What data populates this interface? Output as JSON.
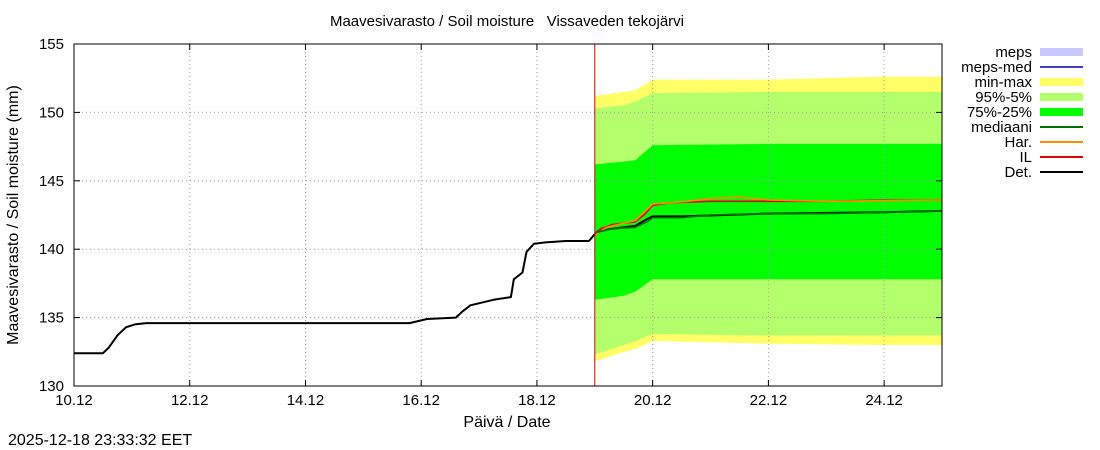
{
  "chart_data": {
    "type": "area",
    "title": "Maavesivarasto / Soil moisture",
    "station": "Vissaveden tekojärvi",
    "xlabel": "Päivä / Date",
    "ylabel": "Maavesivarasto / Soil moisture (mm)",
    "timestamp": "2025-12-18 23:33:32 EET",
    "xlim": [
      0,
      15
    ],
    "ylim": [
      130,
      155
    ],
    "grid": true,
    "legend_position": "outside-right",
    "x_ticks": [
      {
        "x": 0,
        "label": "10.12"
      },
      {
        "x": 2,
        "label": "12.12"
      },
      {
        "x": 4,
        "label": "14.12"
      },
      {
        "x": 6,
        "label": "16.12"
      },
      {
        "x": 8,
        "label": "18.12"
      },
      {
        "x": 10,
        "label": "20.12"
      },
      {
        "x": 12,
        "label": "22.12"
      },
      {
        "x": 14,
        "label": "24.12"
      }
    ],
    "y_ticks": [
      {
        "y": 130,
        "label": "130"
      },
      {
        "y": 135,
        "label": "135"
      },
      {
        "y": 140,
        "label": "140"
      },
      {
        "y": 145,
        "label": "145"
      },
      {
        "y": 150,
        "label": "150"
      },
      {
        "y": 155,
        "label": "155"
      }
    ],
    "forecast_start": 9.0,
    "legend": [
      {
        "key": "meps",
        "label": "meps",
        "kind": "box",
        "color": "#c8c8ff"
      },
      {
        "key": "meps_med",
        "label": "meps-med",
        "kind": "line",
        "color": "#4040c0"
      },
      {
        "key": "minmax",
        "label": "min-max",
        "kind": "box",
        "color": "#ffff66"
      },
      {
        "key": "p95_5",
        "label": "95%-5%",
        "kind": "box",
        "color": "#b4ff6c"
      },
      {
        "key": "p75_25",
        "label": "75%-25%",
        "kind": "box",
        "color": "#00ff00"
      },
      {
        "key": "median",
        "label": "mediaani",
        "kind": "line",
        "color": "#007000"
      },
      {
        "key": "har",
        "label": "Har.",
        "kind": "line",
        "color": "#ff8c00"
      },
      {
        "key": "il",
        "label": "IL",
        "kind": "line",
        "color": "#e00000"
      },
      {
        "key": "det",
        "label": "Det.",
        "kind": "line",
        "color": "#000000"
      }
    ],
    "bands": {
      "minmax": {
        "x": [
          9.0,
          9.5,
          9.7,
          10.0,
          12.0,
          14.0,
          15.0
        ],
        "lower": [
          131.8,
          132.5,
          132.7,
          133.3,
          133.1,
          133.0,
          133.0
        ],
        "upper": [
          151.2,
          151.5,
          151.6,
          152.4,
          152.4,
          152.6,
          152.6
        ]
      },
      "p95_5": {
        "x": [
          9.0,
          9.5,
          9.7,
          10.0,
          12.0,
          14.0,
          15.0
        ],
        "lower": [
          132.3,
          133.0,
          133.3,
          133.8,
          133.7,
          133.7,
          133.7
        ],
        "upper": [
          150.3,
          150.5,
          150.8,
          151.4,
          151.5,
          151.5,
          151.5
        ]
      },
      "p75_25": {
        "x": [
          9.0,
          9.5,
          9.7,
          10.0,
          12.0,
          14.0,
          15.0
        ],
        "lower": [
          136.3,
          136.6,
          136.9,
          137.8,
          137.8,
          137.8,
          137.8
        ],
        "upper": [
          146.2,
          146.4,
          146.5,
          147.6,
          147.7,
          147.7,
          147.7
        ]
      }
    },
    "series": [
      {
        "key": "det",
        "name": "Det.",
        "color": "#000000",
        "x": [
          0,
          0.5,
          0.6,
          0.75,
          0.9,
          1.05,
          1.25,
          5.8,
          6.1,
          6.6,
          6.7,
          6.85,
          7.25,
          7.55,
          7.6,
          7.75,
          7.82,
          7.95,
          8.15,
          8.5,
          8.9,
          8.98,
          9.05,
          9.3,
          9.7,
          9.9,
          10.0,
          10.5,
          12.0,
          14.0,
          15.0
        ],
        "y": [
          132.4,
          132.4,
          132.8,
          133.7,
          134.3,
          134.5,
          134.6,
          134.6,
          134.9,
          135.0,
          135.4,
          135.9,
          136.3,
          136.5,
          137.8,
          138.3,
          139.8,
          140.4,
          140.5,
          140.6,
          140.6,
          141.0,
          141.3,
          141.5,
          141.7,
          142.2,
          142.4,
          142.4,
          142.6,
          142.7,
          142.8
        ]
      },
      {
        "key": "il",
        "name": "IL",
        "color": "#e00000",
        "x": [
          9.0,
          9.1,
          9.3,
          9.7,
          9.85,
          10.0,
          10.3,
          11.0,
          12.0,
          13.0,
          14.0,
          15.0
        ],
        "y": [
          141.0,
          141.5,
          141.8,
          142.0,
          142.5,
          143.2,
          143.4,
          143.5,
          143.5,
          143.5,
          143.6,
          143.6
        ]
      },
      {
        "key": "har",
        "name": "Har.",
        "color": "#ff8c00",
        "x": [
          9.0,
          9.2,
          9.7,
          10.0,
          10.6,
          11.0,
          11.5,
          12.0,
          13.0,
          15.0
        ],
        "y": [
          141.0,
          141.6,
          142.1,
          143.3,
          143.5,
          143.7,
          143.8,
          143.6,
          143.5,
          143.6
        ]
      },
      {
        "key": "median",
        "name": "mediaani",
        "color": "#007000",
        "x": [
          9.0,
          9.3,
          9.7,
          9.9,
          10.0,
          10.5,
          11.0,
          12.0,
          13.0,
          14.0,
          15.0
        ],
        "y": [
          141.2,
          141.5,
          141.6,
          142.0,
          142.3,
          142.3,
          142.5,
          142.6,
          142.6,
          142.7,
          142.8
        ]
      }
    ]
  }
}
